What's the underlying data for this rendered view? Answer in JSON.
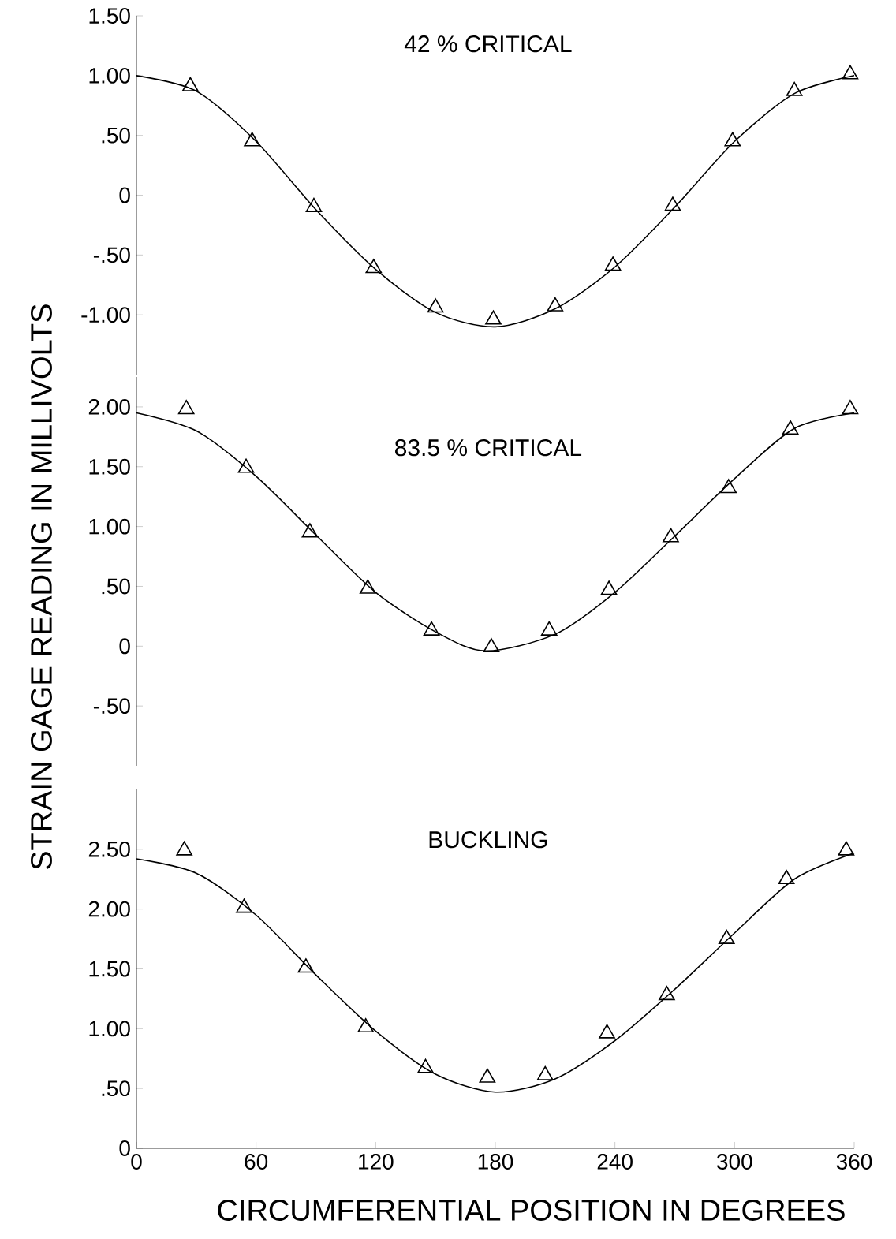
{
  "chart_data": [
    {
      "type": "line",
      "title": "42 % CRITICAL",
      "xlim": [
        0,
        360
      ],
      "xticks": [
        0,
        60,
        120,
        180,
        240,
        300,
        360
      ],
      "ylim": [
        -1.5,
        1.5
      ],
      "yticks": [
        {
          "value": 1.5,
          "label": "1.50"
        },
        {
          "value": 1.0,
          "label": "1.00"
        },
        {
          "value": 0.5,
          "label": ".50"
        },
        0,
        {
          "value": -0.5,
          "label": "-.50"
        },
        {
          "value": -1.0,
          "label": "-1.00"
        }
      ],
      "tick_labels": "y",
      "series": [
        {
          "type": "scatter",
          "marker": "triangle",
          "color": "#000000",
          "x": [
            27,
            58,
            89,
            119,
            150,
            179,
            210,
            239,
            269,
            299,
            330,
            358
          ],
          "values": [
            0.91,
            0.45,
            -0.1,
            -0.61,
            -0.94,
            -1.04,
            -0.93,
            -0.59,
            -0.09,
            0.45,
            0.87,
            1.01
          ]
        },
        {
          "color": "#000000",
          "x": [
            0,
            30,
            60,
            90,
            120,
            150,
            180,
            210,
            240,
            270,
            300,
            330,
            360
          ],
          "values": [
            1.0,
            0.87,
            0.45,
            -0.12,
            -0.62,
            -0.98,
            -1.1,
            -0.95,
            -0.6,
            -0.1,
            0.45,
            0.85,
            1.0
          ]
        }
      ]
    },
    {
      "type": "line",
      "title": "83.5 % CRITICAL",
      "ylabel": "STRAIN GAGE READING IN MILLIVOLTS",
      "xlim": [
        0,
        360
      ],
      "xticks": [
        0,
        60,
        120,
        180,
        240,
        300,
        360
      ],
      "ylim": [
        -1.0,
        2.25
      ],
      "yticks": [
        {
          "value": 2.0,
          "label": "2.00"
        },
        {
          "value": 1.5,
          "label": "1.50"
        },
        {
          "value": 1.0,
          "label": "1.00"
        },
        {
          "value": 0.5,
          "label": ".50"
        },
        0,
        {
          "value": -0.5,
          "label": "-.50"
        }
      ],
      "tick_labels": "y",
      "series": [
        {
          "type": "scatter",
          "marker": "triangle",
          "color": "#000000",
          "x": [
            25,
            55,
            87,
            116,
            148,
            178,
            207,
            237,
            268,
            297,
            328,
            358
          ],
          "values": [
            1.98,
            1.49,
            0.95,
            0.48,
            0.13,
            -0.01,
            0.13,
            0.47,
            0.91,
            1.32,
            1.81,
            1.98
          ]
        },
        {
          "color": "#000000",
          "x": [
            0,
            30,
            60,
            90,
            120,
            150,
            175,
            210,
            240,
            270,
            300,
            330,
            360
          ],
          "values": [
            1.95,
            1.8,
            1.42,
            0.93,
            0.45,
            0.12,
            -0.04,
            0.1,
            0.45,
            0.92,
            1.4,
            1.82,
            1.95
          ]
        }
      ]
    },
    {
      "type": "line",
      "title": "BUCKLING",
      "xlabel": "CIRCUMFERENTIAL POSITION IN DEGREES",
      "xlim": [
        0,
        360
      ],
      "xticks": [
        0,
        60,
        120,
        180,
        240,
        300,
        360
      ],
      "ylim": [
        0,
        3.0
      ],
      "yticks": [
        {
          "value": 2.5,
          "label": "2.50"
        },
        {
          "value": 2.0,
          "label": "2.00"
        },
        {
          "value": 1.5,
          "label": "1.50"
        },
        {
          "value": 1.0,
          "label": "1.00"
        },
        {
          "value": 0.5,
          "label": ".50"
        },
        0
      ],
      "series": [
        {
          "type": "scatter",
          "marker": "triangle",
          "color": "#000000",
          "x": [
            24,
            54,
            85,
            115,
            145,
            176,
            205,
            236,
            266,
            296,
            326,
            356
          ],
          "values": [
            2.49,
            2.01,
            1.51,
            1.01,
            0.67,
            0.59,
            0.61,
            0.96,
            1.28,
            1.75,
            2.25,
            2.49
          ]
        },
        {
          "color": "#000000",
          "x": [
            0,
            30,
            60,
            90,
            120,
            150,
            180,
            210,
            240,
            270,
            300,
            330,
            360
          ],
          "values": [
            2.42,
            2.3,
            1.95,
            1.45,
            0.98,
            0.62,
            0.47,
            0.58,
            0.9,
            1.33,
            1.8,
            2.25,
            2.47
          ]
        }
      ]
    }
  ]
}
